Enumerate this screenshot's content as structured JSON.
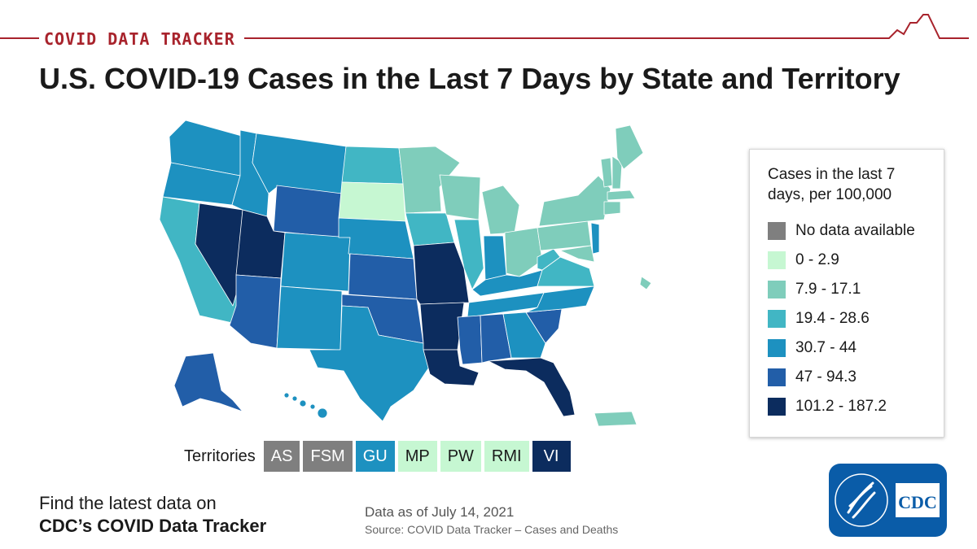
{
  "banner": {
    "label": "COVID DATA TRACKER"
  },
  "title": "U.S. COVID-19 Cases in the Last 7 Days by State and Territory",
  "legend": {
    "title": "Cases in the last 7 days, per 100,000",
    "items": [
      {
        "label": "No data available",
        "color": "#7f7f7f"
      },
      {
        "label": "0 - 2.9",
        "color": "#c6f7d2"
      },
      {
        "label": "7.9 - 17.1",
        "color": "#7fcdbb"
      },
      {
        "label": "19.4 - 28.6",
        "color": "#41b6c4"
      },
      {
        "label": "30.7 - 44",
        "color": "#1d91c0"
      },
      {
        "label": "47 - 94.3",
        "color": "#225ea8"
      },
      {
        "label": "101.2 - 187.2",
        "color": "#0c2c5e"
      }
    ]
  },
  "territories": {
    "label": "Territories",
    "items": [
      {
        "code": "AS",
        "color": "#7f7f7f",
        "text_color": "#ffffff"
      },
      {
        "code": "FSM",
        "color": "#7f7f7f",
        "text_color": "#ffffff"
      },
      {
        "code": "GU",
        "color": "#1d91c0",
        "text_color": "#ffffff"
      },
      {
        "code": "MP",
        "color": "#c6f7d2",
        "text_color": "#1a1a1a"
      },
      {
        "code": "PW",
        "color": "#c6f7d2",
        "text_color": "#1a1a1a"
      },
      {
        "code": "RMI",
        "color": "#c6f7d2",
        "text_color": "#1a1a1a"
      },
      {
        "code": "VI",
        "color": "#0c2c5e",
        "text_color": "#ffffff"
      }
    ]
  },
  "cta": {
    "line1": "Find the latest data on",
    "line2": "CDC’s COVID Data Tracker"
  },
  "data_as_of": "Data as of July 14, 2021",
  "source": "Source: COVID Data Tracker – Cases and Deaths",
  "logo": {
    "text": "CDC",
    "icon": "hhs-eagle-icon"
  },
  "map_regions": {
    "colors": {
      "nodata": "#7f7f7f",
      "c1": "#c6f7d2",
      "c2": "#7fcdbb",
      "c3": "#41b6c4",
      "c4": "#1d91c0",
      "c5": "#225ea8",
      "c6": "#0c2c5e"
    }
  }
}
